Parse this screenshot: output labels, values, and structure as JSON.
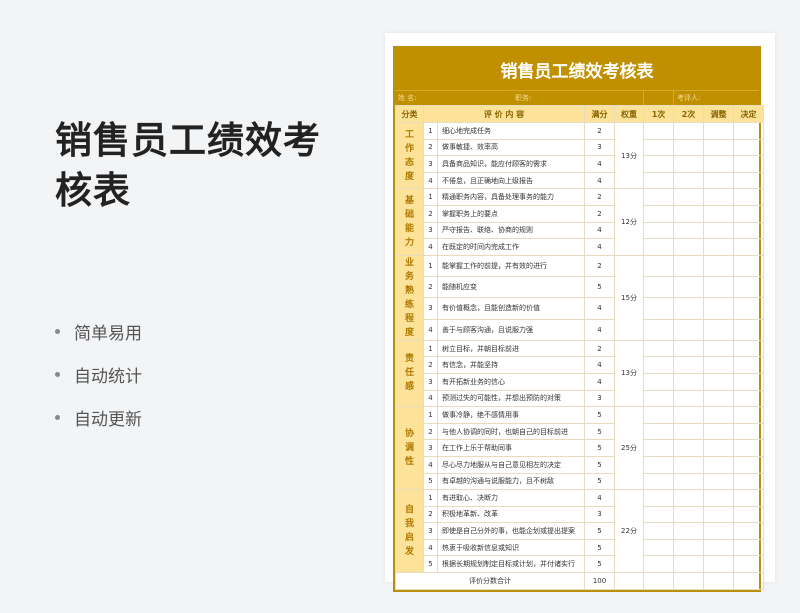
{
  "left": {
    "title": "销售员工绩效考核表",
    "features": [
      "简单易用",
      "自动统计",
      "自动更新"
    ]
  },
  "sheet": {
    "title": "销售员工绩效考核表",
    "info": {
      "name": "姓 名:",
      "position": "职务:",
      "reviewer": "考评人:"
    },
    "headers": [
      "分类",
      "评 价 内 容",
      "满分",
      "权重",
      "1次",
      "2次",
      "调整",
      "决定"
    ],
    "groups": [
      {
        "category": "工作态度",
        "weight": "13分",
        "items": [
          [
            "1",
            "细心地完成任务",
            "2"
          ],
          [
            "2",
            "做事敏捷、效率高",
            "3"
          ],
          [
            "3",
            "具备商品知识，能应付顾客的需求",
            "4"
          ],
          [
            "4",
            "不倦怠，且正确地向上级报告",
            "4"
          ]
        ]
      },
      {
        "category": "基础能力",
        "weight": "12分",
        "items": [
          [
            "1",
            "精通职务内容，具备处理事务的能力",
            "2"
          ],
          [
            "2",
            "掌握职务上的要点",
            "2"
          ],
          [
            "3",
            "严守报告、联络、协商的规则",
            "4"
          ],
          [
            "4",
            "在既定的时间内完成工作",
            "4"
          ]
        ]
      },
      {
        "category": "业务熟练程度",
        "weight": "15分",
        "items": [
          [
            "1",
            "能掌握工作的前提，并有效的进行",
            "2"
          ],
          [
            "2",
            "能随机应变",
            "5"
          ],
          [
            "3",
            "有价值概念，且能创造新的价值",
            "4"
          ],
          [
            "4",
            "善于与顾客沟通，且说服力强",
            "4"
          ]
        ]
      },
      {
        "category": "责任感",
        "weight": "13分",
        "items": [
          [
            "1",
            "树立目标，并朝目标前进",
            "2"
          ],
          [
            "2",
            "有信念，并能坚持",
            "4"
          ],
          [
            "3",
            "有开拓新业务的信心",
            "4"
          ],
          [
            "4",
            "预测过失的可能性，并想出预防的对策",
            "3"
          ]
        ]
      },
      {
        "category": "协调性",
        "weight": "25分",
        "items": [
          [
            "1",
            "做事冷静，绝不感情用事",
            "5"
          ],
          [
            "2",
            "与他人协调的同时，也朝自己的目标前进",
            "5"
          ],
          [
            "3",
            "在工作上乐于帮助同事",
            "5"
          ],
          [
            "4",
            "尽心尽力地服从与自己意见相左的决定",
            "5"
          ],
          [
            "5",
            "有卓越的沟通与说服能力，且不树敌",
            "5"
          ]
        ]
      },
      {
        "category": "自我启发",
        "weight": "22分",
        "items": [
          [
            "1",
            "有进取心、决断力",
            "4"
          ],
          [
            "2",
            "积极地革新、改革",
            "3"
          ],
          [
            "3",
            "即使是自己分外的事，也能企划或提出提案",
            "5"
          ],
          [
            "4",
            "热衷于吸收新信息或知识",
            "5"
          ],
          [
            "5",
            "根据长期规划制定目标或计划，并付诸实行",
            "5"
          ]
        ]
      }
    ],
    "total": {
      "label": "评价分数合计",
      "value": "100"
    }
  },
  "colors": {
    "accent": "#c09000",
    "header_bg": "#fde39a"
  }
}
